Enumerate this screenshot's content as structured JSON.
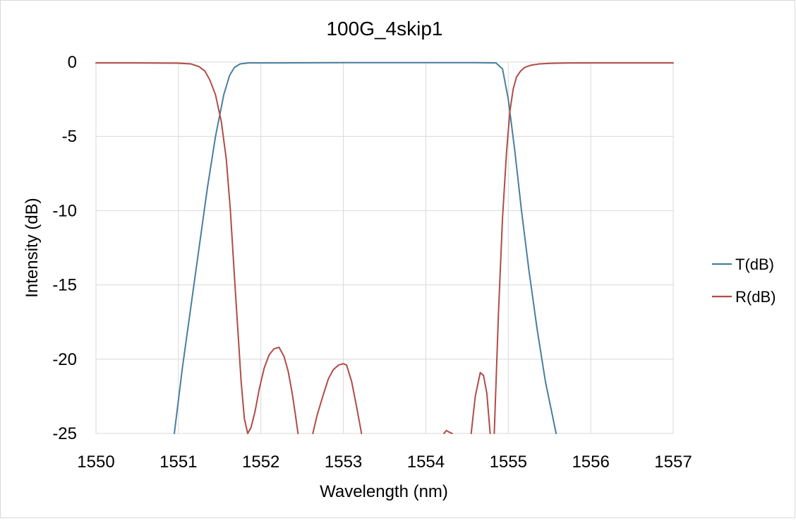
{
  "chart_data": {
    "type": "line",
    "title": "100G_4skip1",
    "xlabel": "Wavelength (nm)",
    "ylabel": "Intensity (dB)",
    "xlim": [
      1550,
      1557
    ],
    "ylim": [
      -25,
      0
    ],
    "xticks": [
      1550,
      1551,
      1552,
      1553,
      1554,
      1555,
      1556,
      1557
    ],
    "yticks": [
      0,
      -5,
      -10,
      -15,
      -20,
      -25
    ],
    "x_tick_labels": [
      "1550",
      "1551",
      "1552",
      "1553",
      "1554",
      "1555",
      "1556",
      "1557"
    ],
    "y_tick_labels": [
      "0",
      "-5",
      "-10",
      "-15",
      "-20",
      "-25"
    ],
    "grid": true,
    "legend_position": "right",
    "series": [
      {
        "name": "T(dB)",
        "color": "#4a7ea0",
        "x": [
          1550.95,
          1551.05,
          1551.15,
          1551.25,
          1551.35,
          1551.45,
          1551.55,
          1551.62,
          1551.68,
          1551.75,
          1551.85,
          1552.0,
          1553.0,
          1554.0,
          1554.6,
          1554.85,
          1554.93,
          1555.0,
          1555.08,
          1555.16,
          1555.25,
          1555.35,
          1555.45,
          1555.58
        ],
        "y": [
          -25,
          -20.5,
          -16.5,
          -12.5,
          -8.5,
          -5,
          -2.2,
          -0.9,
          -0.35,
          -0.12,
          -0.05,
          -0.05,
          -0.04,
          -0.04,
          -0.04,
          -0.05,
          -0.45,
          -2.5,
          -6,
          -10,
          -14,
          -18,
          -21.5,
          -25
        ]
      },
      {
        "name": "R(dB)",
        "color": "#b04c47",
        "segments": [
          {
            "x": [
              1550,
              1550.5,
              1551.0,
              1551.15,
              1551.25,
              1551.32,
              1551.38,
              1551.45,
              1551.52,
              1551.58,
              1551.63,
              1551.68,
              1551.72,
              1551.76,
              1551.8,
              1551.84,
              1551.88,
              1551.93,
              1551.98,
              1552.04,
              1552.1,
              1552.16,
              1552.22,
              1552.28,
              1552.33,
              1552.38,
              1552.42,
              1552.45
            ],
            "y": [
              -0.05,
              -0.05,
              -0.07,
              -0.12,
              -0.3,
              -0.6,
              -1.2,
              -2.2,
              -4.0,
              -6.5,
              -10.0,
              -14.5,
              -18.0,
              -21.5,
              -24.0,
              -25.0,
              -24.6,
              -23.5,
              -22.0,
              -20.6,
              -19.7,
              -19.3,
              -19.2,
              -19.8,
              -20.8,
              -22.3,
              -23.8,
              -25.0
            ]
          },
          {
            "x": [
              1552.63,
              1552.68,
              1552.75,
              1552.82,
              1552.88,
              1552.94,
              1553.0,
              1553.04,
              1553.1,
              1553.16,
              1553.22
            ],
            "y": [
              -25.0,
              -23.8,
              -22.5,
              -21.3,
              -20.7,
              -20.4,
              -20.3,
              -20.4,
              -21.5,
              -23.2,
              -25.0
            ]
          },
          {
            "x": [
              1554.22,
              1554.25,
              1554.28,
              1554.32
            ],
            "y": [
              -25.0,
              -24.8,
              -24.9,
              -25.0
            ]
          },
          {
            "x": [
              1554.55,
              1554.6,
              1554.66,
              1554.7,
              1554.74,
              1554.78
            ],
            "y": [
              -25.0,
              -22.5,
              -20.9,
              -21.1,
              -22.3,
              -25.0
            ]
          },
          {
            "x": [
              1554.83,
              1554.88,
              1554.93,
              1554.98,
              1555.02,
              1555.06,
              1555.1,
              1555.15,
              1555.2,
              1555.28,
              1555.38,
              1555.5,
              1555.7,
              1556.0,
              1556.5,
              1557.0
            ],
            "y": [
              -25.0,
              -17.0,
              -10.5,
              -6.0,
              -3.3,
              -1.8,
              -1.0,
              -0.6,
              -0.35,
              -0.2,
              -0.12,
              -0.08,
              -0.06,
              -0.05,
              -0.05,
              -0.05
            ]
          }
        ]
      }
    ]
  }
}
